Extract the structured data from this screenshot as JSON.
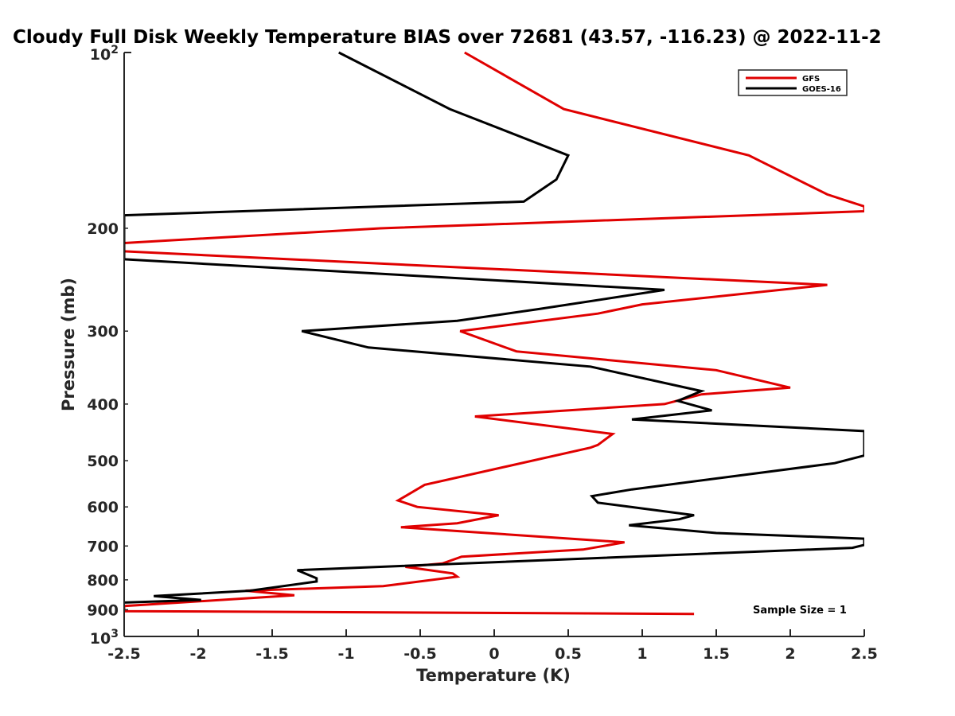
{
  "chart_data": {
    "type": "line",
    "title": "Cloudy Full Disk Weekly Temperature BIAS over 72681 (43.57, -116.23) @ 2022-11-2",
    "xlabel": "Temperature (K)",
    "ylabel": "Pressure (mb)",
    "xlim": [
      -2.5,
      2.5
    ],
    "ylim": [
      100,
      1000
    ],
    "y_scale": "log",
    "y_reversed": true,
    "x_ticks": [
      -2.5,
      -2,
      -1.5,
      -1,
      -0.5,
      0,
      0.5,
      1,
      1.5,
      2,
      2.5
    ],
    "x_tick_labels": [
      "-2.5",
      "-2",
      "-1.5",
      "-1",
      "-0.5",
      "0",
      "0.5",
      "1",
      "1.5",
      "2",
      "2.5"
    ],
    "y_ticks": [
      200,
      300,
      400,
      500,
      600,
      700,
      800,
      900
    ],
    "y_tick_labels": [
      "200",
      "300",
      "400",
      "500",
      "600",
      "700",
      "800",
      "900"
    ],
    "y_tick_top": {
      "base": "10",
      "exp": "2"
    },
    "y_tick_bottom": {
      "base": "10",
      "exp": "3"
    },
    "grid": false,
    "legend_position": "top-right",
    "annotation": "Sample Size = 1",
    "series": [
      {
        "name": "GFS",
        "color": "#e00000",
        "points": [
          [
            -0.2,
            100
          ],
          [
            0.47,
            125
          ],
          [
            1.72,
            150
          ],
          [
            2.25,
            175
          ],
          [
            2.5,
            183.5
          ],
          [
            2.5,
            187
          ],
          [
            -0.77,
            200
          ],
          [
            -2.5,
            212
          ],
          [
            -2.5,
            219
          ],
          [
            2.25,
            250
          ],
          [
            1.0,
            270
          ],
          [
            0.7,
            280
          ],
          [
            -0.23,
            300
          ],
          [
            0.15,
            325
          ],
          [
            1.5,
            350
          ],
          [
            2.0,
            375
          ],
          [
            1.4,
            385
          ],
          [
            1.15,
            400
          ],
          [
            -0.13,
            420
          ],
          [
            0.8,
            450
          ],
          [
            0.7,
            470
          ],
          [
            0.65,
            475
          ],
          [
            -0.47,
            550
          ],
          [
            -0.65,
            585
          ],
          [
            -0.52,
            600
          ],
          [
            0.03,
            620
          ],
          [
            -0.25,
            640
          ],
          [
            -0.63,
            650
          ],
          [
            -0.25,
            660
          ],
          [
            0.88,
            690
          ],
          [
            0.6,
            710
          ],
          [
            -0.22,
            730
          ],
          [
            -0.35,
            750
          ],
          [
            -0.6,
            760
          ],
          [
            -0.28,
            780
          ],
          [
            -0.25,
            790
          ],
          [
            -0.75,
            820
          ],
          [
            -1.68,
            835
          ],
          [
            -1.35,
            850
          ],
          [
            -2.5,
            887
          ],
          [
            -2.5,
            905
          ],
          [
            1.35,
            915
          ]
        ]
      },
      {
        "name": "GOES-16",
        "color": "#000000",
        "points": [
          [
            -1.05,
            100
          ],
          [
            -0.3,
            125
          ],
          [
            0.5,
            150
          ],
          [
            0.42,
            165
          ],
          [
            0.2,
            180
          ],
          [
            -2.5,
            190
          ],
          [
            -2.5,
            226
          ],
          [
            1.15,
            255
          ],
          [
            0.3,
            275
          ],
          [
            -0.25,
            288
          ],
          [
            -1.3,
            300
          ],
          [
            -0.85,
            320
          ],
          [
            0.65,
            345
          ],
          [
            1.4,
            380
          ],
          [
            1.24,
            395
          ],
          [
            1.47,
            410
          ],
          [
            0.93,
            425
          ],
          [
            2.5,
            445
          ],
          [
            2.5,
            490
          ],
          [
            2.3,
            505
          ],
          [
            0.93,
            560
          ],
          [
            0.66,
            575
          ],
          [
            0.7,
            590
          ],
          [
            1.35,
            620
          ],
          [
            1.25,
            630
          ],
          [
            0.91,
            645
          ],
          [
            1.5,
            665
          ],
          [
            2.5,
            680
          ],
          [
            2.5,
            697
          ],
          [
            2.42,
            705
          ],
          [
            -1.33,
            770
          ],
          [
            -1.2,
            795
          ],
          [
            -1.2,
            805
          ],
          [
            -1.65,
            835
          ],
          [
            -2.3,
            853
          ],
          [
            -1.98,
            866
          ],
          [
            -2.5,
            875
          ]
        ]
      }
    ]
  }
}
